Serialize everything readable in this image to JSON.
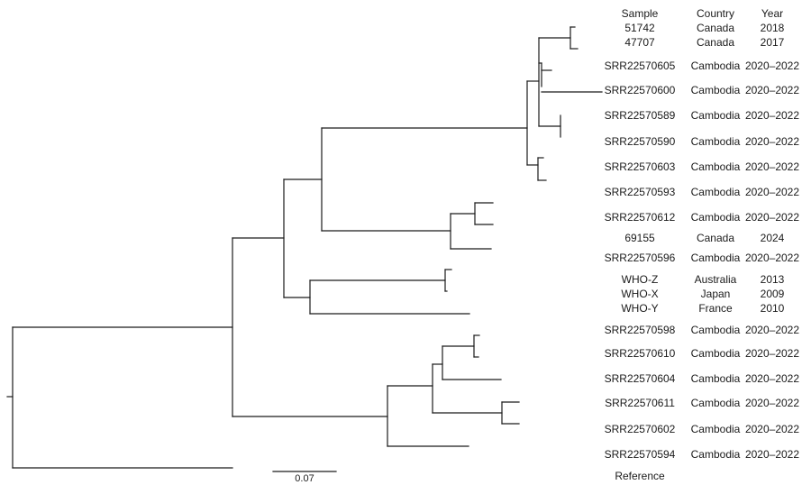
{
  "table": {
    "headers": {
      "sample": "Sample",
      "country": "Country",
      "year": "Year"
    },
    "rows": [
      {
        "sample": "51742",
        "country": "Canada",
        "year": "2018"
      },
      {
        "sample": "47707",
        "country": "Canada",
        "year": "2017"
      },
      {
        "sample": "SRR22570605",
        "country": "Cambodia",
        "year": "2020–2022"
      },
      {
        "sample": "SRR22570600",
        "country": "Cambodia",
        "year": "2020–2022"
      },
      {
        "sample": "SRR22570589",
        "country": "Cambodia",
        "year": "2020–2022"
      },
      {
        "sample": "SRR22570590",
        "country": "Cambodia",
        "year": "2020–2022"
      },
      {
        "sample": "SRR22570603",
        "country": "Cambodia",
        "year": "2020–2022"
      },
      {
        "sample": "SRR22570593",
        "country": "Cambodia",
        "year": "2020–2022"
      },
      {
        "sample": "SRR22570612",
        "country": "Cambodia",
        "year": "2020–2022"
      },
      {
        "sample": "69155",
        "country": "Canada",
        "year": "2024"
      },
      {
        "sample": "SRR22570596",
        "country": "Cambodia",
        "year": "2020–2022"
      },
      {
        "sample": "WHO-Z",
        "country": "Australia",
        "year": "2013"
      },
      {
        "sample": "WHO-X",
        "country": "Japan",
        "year": "2009"
      },
      {
        "sample": "WHO-Y",
        "country": "France",
        "year": "2010"
      },
      {
        "sample": "SRR22570598",
        "country": "Cambodia",
        "year": "2020–2022"
      },
      {
        "sample": "SRR22570610",
        "country": "Cambodia",
        "year": "2020–2022"
      },
      {
        "sample": "SRR22570604",
        "country": "Cambodia",
        "year": "2020–2022"
      },
      {
        "sample": "SRR22570611",
        "country": "Cambodia",
        "year": "2020–2022"
      },
      {
        "sample": "SRR22570602",
        "country": "Cambodia",
        "year": "2020–2022"
      },
      {
        "sample": "SRR22570594",
        "country": "Cambodia",
        "year": "2020–2022"
      },
      {
        "sample": "Reference",
        "country": "",
        "year": ""
      }
    ]
  },
  "scale_bar": {
    "label": "0.07"
  }
}
